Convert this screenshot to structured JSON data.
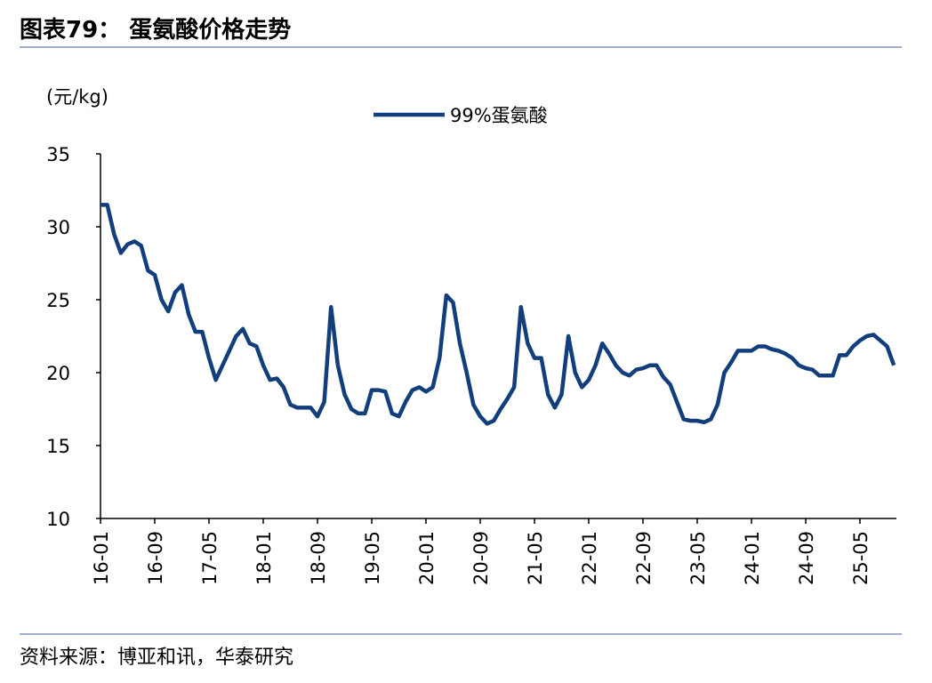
{
  "chart_data": {
    "type": "line",
    "title": "图表79：  蛋氨酸价格走势",
    "y_label": "(元/kg)",
    "source": "资料来源：博亚和讯，华泰研究",
    "categories": [
      "16-01",
      null,
      null,
      null,
      null,
      null,
      null,
      null,
      "16-09",
      null,
      null,
      null,
      null,
      null,
      null,
      null,
      "17-05",
      null,
      null,
      null,
      null,
      null,
      null,
      null,
      "18-01",
      null,
      null,
      null,
      null,
      null,
      null,
      null,
      "18-09",
      null,
      null,
      null,
      null,
      null,
      null,
      null,
      "19-05",
      null,
      null,
      null,
      null,
      null,
      null,
      null,
      "20-01",
      null,
      null,
      null,
      null,
      null,
      null,
      null,
      "20-09",
      null,
      null,
      null,
      null,
      null,
      null,
      null,
      "21-05",
      null,
      null,
      null,
      null,
      null,
      null,
      null,
      "22-01",
      null,
      null,
      null,
      null,
      null,
      null,
      null,
      "22-09",
      null,
      null,
      null,
      null,
      null,
      null,
      null,
      "23-05",
      null,
      null,
      null,
      null,
      null,
      null,
      null,
      "24-01",
      null,
      null,
      null,
      null,
      null,
      null,
      null,
      "24-09",
      null,
      null,
      null,
      null,
      null,
      null,
      null,
      "25-05",
      null,
      null,
      null,
      null,
      null
    ],
    "series": [
      {
        "name": "99%蛋氨酸",
        "color": "#123f7c",
        "values": [
          31.5,
          31.5,
          29.5,
          28.2,
          28.8,
          29.0,
          28.7,
          27.0,
          26.7,
          25.0,
          24.2,
          25.5,
          26.0,
          24.0,
          22.8,
          22.8,
          21.0,
          19.5,
          20.5,
          21.5,
          22.5,
          23.0,
          22.0,
          21.8,
          20.5,
          19.5,
          19.6,
          19.0,
          17.8,
          17.6,
          17.6,
          17.6,
          17.0,
          18.0,
          24.5,
          20.5,
          18.5,
          17.5,
          17.2,
          17.2,
          18.8,
          18.8,
          18.7,
          17.2,
          17.0,
          18.0,
          18.8,
          19.0,
          18.7,
          19.0,
          21.0,
          25.3,
          24.8,
          22.0,
          20.0,
          17.8,
          17.0,
          16.5,
          16.7,
          17.5,
          18.2,
          19.0,
          24.5,
          22.0,
          21.0,
          21.0,
          18.5,
          17.6,
          18.5,
          22.5,
          20.0,
          19.0,
          19.5,
          20.5,
          22.0,
          21.3,
          20.5,
          20.0,
          19.8,
          20.2,
          20.3,
          20.5,
          20.5,
          19.7,
          19.2,
          18.0,
          16.8,
          16.7,
          16.7,
          16.6,
          16.8,
          17.8,
          20.0,
          20.7,
          21.5,
          21.5,
          21.5,
          21.8,
          21.8,
          21.6,
          21.5,
          21.3,
          21.0,
          20.5,
          20.3,
          20.2,
          19.8,
          19.8,
          19.8,
          21.2,
          21.2,
          21.8,
          22.2,
          22.5,
          22.6,
          22.2,
          21.8,
          20.5
        ]
      }
    ],
    "ylim": [
      10,
      35
    ],
    "yticks": [
      10,
      15,
      20,
      25,
      30,
      35
    ],
    "grid": false,
    "legend": "top"
  }
}
